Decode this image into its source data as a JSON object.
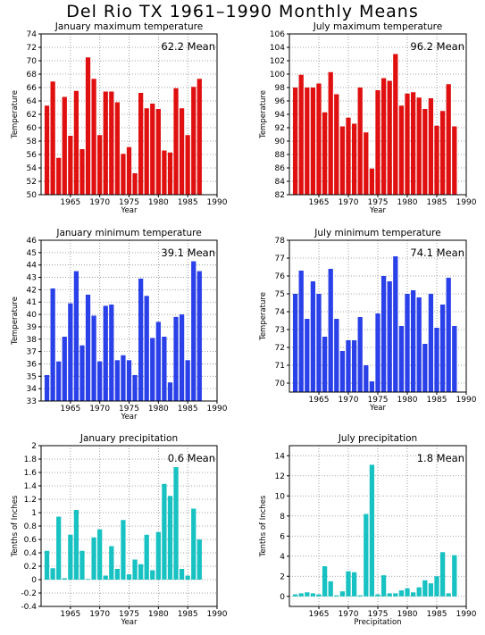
{
  "page_title": "Del Rio TX   1961–1990 Monthly Means",
  "chart_data": [
    {
      "type": "bar",
      "title": "January maximum temperature",
      "mean_label": "62.2  Mean",
      "xlabel": "Year",
      "ylabel": "Temperature",
      "color": "#e01010",
      "ylim": [
        50,
        74
      ],
      "yticks": [
        50,
        52,
        54,
        56,
        58,
        60,
        62,
        64,
        66,
        68,
        70,
        72,
        74
      ],
      "xlim": [
        1960,
        1990
      ],
      "xticks": [
        1965,
        1970,
        1975,
        1980,
        1985,
        1990
      ],
      "x": [
        1961,
        1962,
        1963,
        1964,
        1965,
        1966,
        1967,
        1968,
        1969,
        1970,
        1971,
        1972,
        1973,
        1974,
        1975,
        1976,
        1977,
        1978,
        1979,
        1980,
        1981,
        1982,
        1983,
        1984,
        1985,
        1986,
        1987,
        1988,
        1989,
        1990
      ],
      "values": [
        63.3,
        66.9,
        55.5,
        64.6,
        58.8,
        65.5,
        56.8,
        70.5,
        67.3,
        58.9,
        65.4,
        65.4,
        63.8,
        56.1,
        57.1,
        53.2,
        65.2,
        62.9,
        63.6,
        62.8,
        56.6,
        56.3,
        65.9,
        62.9,
        58.9,
        66.1,
        67.3,
        null,
        null,
        null
      ]
    },
    {
      "type": "bar",
      "title": "July maximum temperature",
      "mean_label": "96.2  Mean",
      "xlabel": "Year",
      "ylabel": "Temperature",
      "color": "#e01010",
      "ylim": [
        82,
        106
      ],
      "yticks": [
        82,
        84,
        86,
        88,
        90,
        92,
        94,
        96,
        98,
        100,
        102,
        104,
        106
      ],
      "xlim": [
        1960,
        1990
      ],
      "xticks": [
        1965,
        1970,
        1975,
        1980,
        1985,
        1990
      ],
      "x": [
        1961,
        1962,
        1963,
        1964,
        1965,
        1966,
        1967,
        1968,
        1969,
        1970,
        1971,
        1972,
        1973,
        1974,
        1975,
        1976,
        1977,
        1978,
        1979,
        1980,
        1981,
        1982,
        1983,
        1984,
        1985,
        1986,
        1987,
        1988,
        1989,
        1990
      ],
      "values": [
        98.0,
        99.9,
        98.0,
        98.0,
        98.6,
        94.3,
        100.3,
        97.0,
        92.2,
        93.5,
        92.6,
        98.0,
        91.3,
        85.9,
        97.6,
        99.4,
        99.0,
        103.0,
        95.3,
        97.1,
        97.3,
        96.5,
        94.8,
        96.4,
        92.3,
        94.5,
        98.5,
        92.2,
        null,
        null
      ]
    },
    {
      "type": "bar",
      "title": "January minimum temperature",
      "mean_label": "39.1  Mean",
      "xlabel": "Year",
      "ylabel": "Temperature",
      "color": "#2a40e8",
      "ylim": [
        33,
        46
      ],
      "yticks": [
        33,
        34,
        35,
        36,
        37,
        38,
        39,
        40,
        41,
        42,
        43,
        44,
        45,
        46
      ],
      "xlim": [
        1960,
        1990
      ],
      "xticks": [
        1965,
        1970,
        1975,
        1980,
        1985,
        1990
      ],
      "x": [
        1961,
        1962,
        1963,
        1964,
        1965,
        1966,
        1967,
        1968,
        1969,
        1970,
        1971,
        1972,
        1973,
        1974,
        1975,
        1976,
        1977,
        1978,
        1979,
        1980,
        1981,
        1982,
        1983,
        1984,
        1985,
        1986,
        1987,
        1988,
        1989,
        1990
      ],
      "values": [
        35.1,
        42.1,
        36.2,
        38.2,
        40.9,
        43.5,
        37.5,
        41.6,
        39.9,
        36.2,
        40.7,
        40.8,
        36.3,
        36.7,
        36.3,
        35.1,
        42.9,
        41.5,
        38.1,
        39.4,
        38.2,
        34.5,
        39.8,
        40.0,
        36.3,
        44.3,
        43.5,
        null,
        null,
        null
      ]
    },
    {
      "type": "bar",
      "title": "July minimum temperature",
      "mean_label": "74.1  Mean",
      "xlabel": "Year",
      "ylabel": "Temperature",
      "color": "#2a40e8",
      "ylim": [
        69.5,
        78
      ],
      "yticks": [
        70,
        71,
        72,
        73,
        74,
        75,
        76,
        77,
        78
      ],
      "xlim": [
        1960,
        1990
      ],
      "xticks": [
        1965,
        1970,
        1975,
        1980,
        1985,
        1990
      ],
      "x": [
        1961,
        1962,
        1963,
        1964,
        1965,
        1966,
        1967,
        1968,
        1969,
        1970,
        1971,
        1972,
        1973,
        1974,
        1975,
        1976,
        1977,
        1978,
        1979,
        1980,
        1981,
        1982,
        1983,
        1984,
        1985,
        1986,
        1987,
        1988,
        1989,
        1990
      ],
      "values": [
        75.0,
        76.3,
        73.6,
        75.7,
        75.0,
        72.6,
        76.4,
        73.6,
        71.8,
        72.4,
        72.4,
        73.7,
        71.0,
        70.1,
        73.9,
        76.0,
        75.7,
        77.1,
        73.2,
        75.0,
        75.2,
        74.8,
        72.2,
        75.0,
        73.1,
        74.4,
        75.9,
        73.2,
        null,
        null
      ]
    },
    {
      "type": "bar",
      "title": "January precipitation",
      "mean_label": "0.6  Mean",
      "xlabel": "Year",
      "ylabel": "Tenths of Inches",
      "color": "#18c2c2",
      "ylim": [
        -0.4,
        2.0
      ],
      "yticks": [
        -0.4,
        -0.2,
        0,
        0.2,
        0.4,
        0.6,
        0.8,
        1,
        1.2,
        1.4,
        1.6,
        1.8,
        2
      ],
      "xlim": [
        1960,
        1990
      ],
      "xticks": [
        1965,
        1970,
        1975,
        1980,
        1985,
        1990
      ],
      "x": [
        1961,
        1962,
        1963,
        1964,
        1965,
        1966,
        1967,
        1968,
        1969,
        1970,
        1971,
        1972,
        1973,
        1974,
        1975,
        1976,
        1977,
        1978,
        1979,
        1980,
        1981,
        1982,
        1983,
        1984,
        1985,
        1986,
        1987,
        1988,
        1989,
        1990
      ],
      "values": [
        0.43,
        0.17,
        0.94,
        0.02,
        0.67,
        1.04,
        0.43,
        0.01,
        0.63,
        0.75,
        0.06,
        0.5,
        0.16,
        0.89,
        0.08,
        0.3,
        0.23,
        0.67,
        0.14,
        0.71,
        1.43,
        1.25,
        1.68,
        0.16,
        0.06,
        1.06,
        0.6,
        null,
        null,
        null
      ]
    },
    {
      "type": "bar",
      "title": "July precipitation",
      "mean_label": "1.8  Mean",
      "xlabel": "Precipitation",
      "ylabel": "Tenths of Inches",
      "color": "#18c2c2",
      "ylim": [
        -1,
        15
      ],
      "yticks": [
        0,
        2,
        4,
        6,
        8,
        10,
        12,
        14
      ],
      "xlim": [
        1960,
        1990
      ],
      "xticks": [
        1965,
        1970,
        1975,
        1980,
        1985,
        1990
      ],
      "x": [
        1961,
        1962,
        1963,
        1964,
        1965,
        1966,
        1967,
        1968,
        1969,
        1970,
        1971,
        1972,
        1973,
        1974,
        1975,
        1976,
        1977,
        1978,
        1979,
        1980,
        1981,
        1982,
        1983,
        1984,
        1985,
        1986,
        1987,
        1988,
        1989,
        1990
      ],
      "values": [
        0.2,
        0.3,
        0.4,
        0.3,
        0.2,
        3.0,
        1.5,
        0.1,
        0.5,
        2.5,
        2.4,
        0.1,
        8.2,
        13.1,
        0.2,
        2.1,
        0.3,
        0.3,
        0.6,
        0.8,
        0.4,
        0.9,
        1.6,
        1.3,
        2.0,
        4.4,
        0.3,
        4.1,
        null,
        null
      ]
    }
  ]
}
